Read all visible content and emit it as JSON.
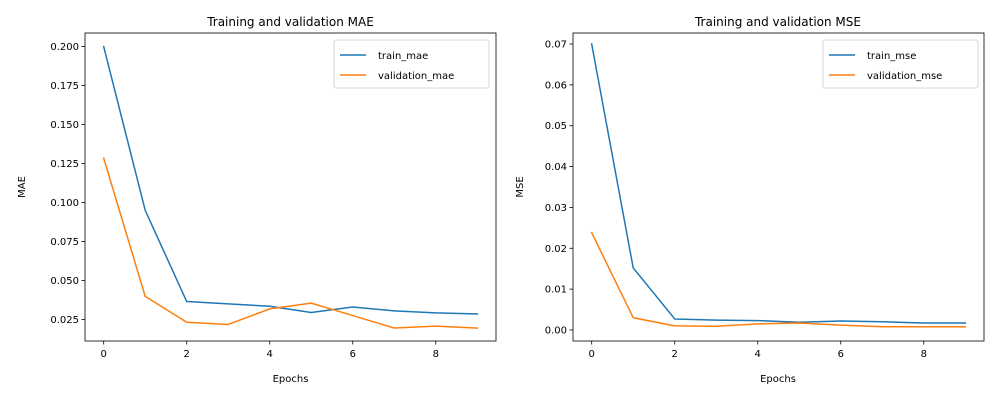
{
  "chart_data": [
    {
      "type": "line",
      "title": "Training and validation MAE",
      "xlabel": "Epochs",
      "ylabel": "MAE",
      "xlim": [
        -0.45,
        9.45
      ],
      "ylim": [
        0.0112,
        0.2087
      ],
      "xticks": [
        0,
        2,
        4,
        6,
        8
      ],
      "xtick_labels": [
        "0",
        "2",
        "4",
        "6",
        "8"
      ],
      "yticks": [
        0.025,
        0.05,
        0.075,
        0.1,
        0.125,
        0.15,
        0.175,
        0.2
      ],
      "ytick_labels": [
        "0.025",
        "0.050",
        "0.075",
        "0.100",
        "0.125",
        "0.150",
        "0.175",
        "0.200"
      ],
      "x": [
        0,
        1,
        2,
        3,
        4,
        5,
        6,
        7,
        8,
        9
      ],
      "series": [
        {
          "name": "train_mae",
          "color": "#1f77b4",
          "values": [
            0.2,
            0.095,
            0.0365,
            0.035,
            0.0335,
            0.0295,
            0.033,
            0.0305,
            0.0292,
            0.0285
          ]
        },
        {
          "name": "validation_mae",
          "color": "#ff7f0e",
          "values": [
            0.1285,
            0.0398,
            0.0232,
            0.0218,
            0.0318,
            0.0355,
            0.0275,
            0.0195,
            0.0207,
            0.0195
          ]
        }
      ],
      "grid": false,
      "legend": "top-right"
    },
    {
      "type": "line",
      "title": "Training and validation MSE",
      "xlabel": "Epochs",
      "ylabel": "MSE",
      "xlim": [
        -0.45,
        9.45
      ],
      "ylim": [
        -0.0027,
        0.0727
      ],
      "xticks": [
        0,
        2,
        4,
        6,
        8
      ],
      "xtick_labels": [
        "0",
        "2",
        "4",
        "6",
        "8"
      ],
      "yticks": [
        0,
        0.01,
        0.02,
        0.03,
        0.04,
        0.05,
        0.06,
        0.07
      ],
      "ytick_labels": [
        "0.00",
        "0.01",
        "0.02",
        "0.03",
        "0.04",
        "0.05",
        "0.06",
        "0.07"
      ],
      "x": [
        0,
        1,
        2,
        3,
        4,
        5,
        6,
        7,
        8,
        9
      ],
      "series": [
        {
          "name": "train_mse",
          "color": "#1f77b4",
          "values": [
            0.07,
            0.0152,
            0.0027,
            0.0024,
            0.0023,
            0.0019,
            0.0022,
            0.002,
            0.0017,
            0.0017
          ]
        },
        {
          "name": "validation_mse",
          "color": "#ff7f0e",
          "values": [
            0.0238,
            0.003,
            0.001,
            0.0009,
            0.0015,
            0.0017,
            0.0012,
            0.0008,
            0.0008,
            0.0008
          ]
        }
      ],
      "grid": false,
      "legend": "top-right"
    }
  ]
}
